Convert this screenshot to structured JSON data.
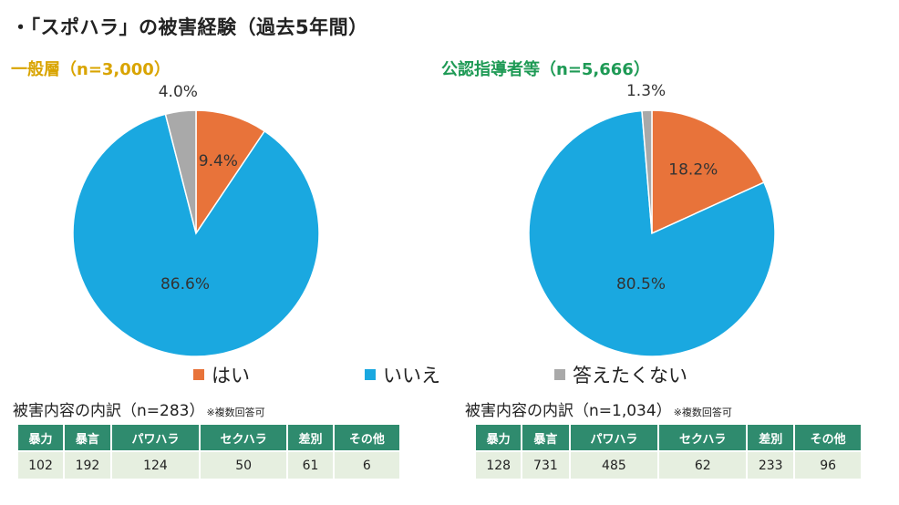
{
  "page_title": "・「スポハラ」の被害経験（過去5年間）",
  "legend": [
    {
      "label": "はい",
      "color": "#e8733a"
    },
    {
      "label": "いいえ",
      "color": "#1aa8e0"
    },
    {
      "label": "答えたくない",
      "color": "#a9a9a9"
    }
  ],
  "chart_data": [
    {
      "type": "pie",
      "title": "一般層（n=3,000）",
      "categories": [
        "はい",
        "いいえ",
        "答えたくない"
      ],
      "values": [
        9.4,
        86.6,
        4.0
      ],
      "labels": [
        "9.4%",
        "86.6%",
        "4.0%"
      ],
      "colors": [
        "#e8733a",
        "#1aa8e0",
        "#a9a9a9"
      ]
    },
    {
      "type": "pie",
      "title": "公認指導者等（n=5,666）",
      "categories": [
        "はい",
        "いいえ",
        "答えたくない"
      ],
      "values": [
        18.2,
        80.5,
        1.3
      ],
      "labels": [
        "18.2%",
        "80.5%",
        "1.3%"
      ],
      "colors": [
        "#e8733a",
        "#1aa8e0",
        "#a9a9a9"
      ]
    },
    {
      "type": "table",
      "title": "被害内容の内訳（n=283）",
      "note": "※複数回答可",
      "headers": [
        "暴力",
        "暴言",
        "パワハラ",
        "セクハラ",
        "差別",
        "その他"
      ],
      "values": [
        "102",
        "192",
        "124",
        "50",
        "61",
        "6"
      ]
    },
    {
      "type": "table",
      "title": "被害内容の内訳（n=1,034）",
      "note": "※複数回答可",
      "headers": [
        "暴力",
        "暴言",
        "パワハラ",
        "セクハラ",
        "差別",
        "その他"
      ],
      "values": [
        "128",
        "731",
        "485",
        "62",
        "233",
        "96"
      ]
    }
  ]
}
